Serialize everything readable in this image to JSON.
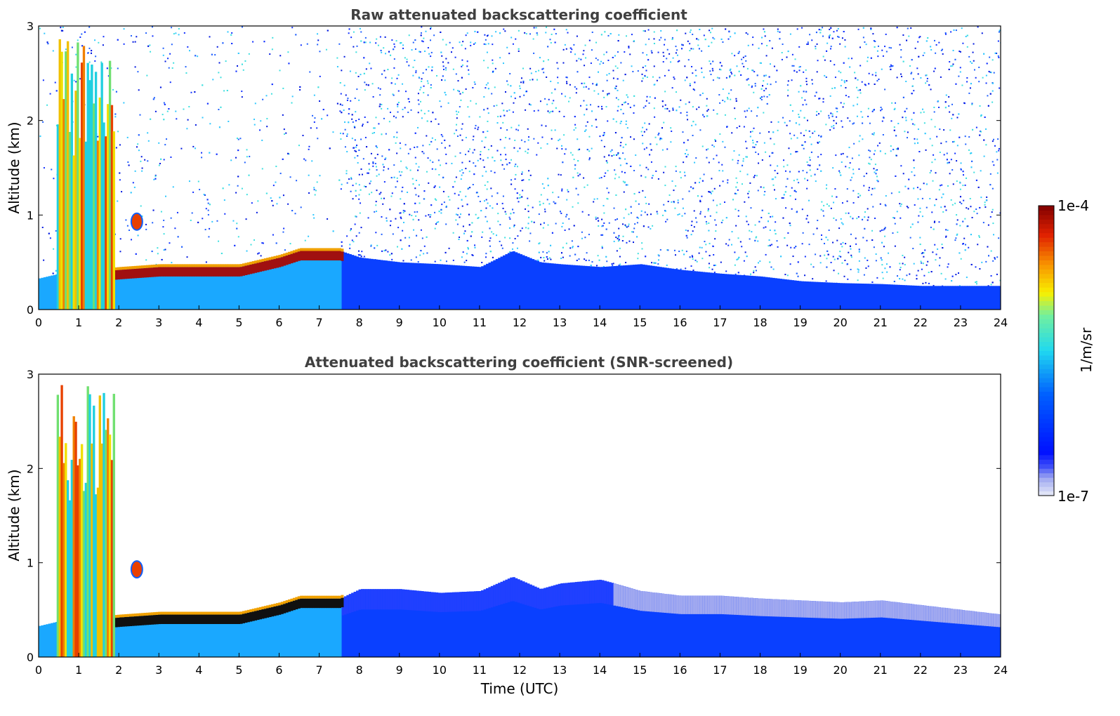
{
  "colors": {
    "colormap_low": "#e8ecf8",
    "colormap_mid_blue": "#0010ff",
    "colormap_cyan": "#20d8f0",
    "colormap_yellow": "#f8f000",
    "colormap_high": "#800000",
    "title_color": "#404040"
  },
  "chart_data": [
    {
      "type": "heatmap",
      "title": "Raw attenuated backscattering coefficient",
      "xlabel": "",
      "ylabel": "Altitude (km)",
      "xlim": [
        0,
        24
      ],
      "ylim": [
        0,
        3
      ],
      "x_ticks": [
        "0",
        "1",
        "2",
        "3",
        "4",
        "5",
        "6",
        "7",
        "8",
        "9",
        "10",
        "11",
        "12",
        "13",
        "14",
        "15",
        "16",
        "17",
        "18",
        "19",
        "20",
        "21",
        "22",
        "23",
        "24"
      ],
      "y_ticks": [
        "0",
        "1",
        "2",
        "3"
      ],
      "layer_top_km": [
        [
          0,
          0.33
        ],
        [
          0.5,
          0.38
        ],
        [
          1,
          0.38
        ],
        [
          1.5,
          0.4
        ],
        [
          2,
          0.42
        ],
        [
          3,
          0.45
        ],
        [
          4,
          0.45
        ],
        [
          5,
          0.45
        ],
        [
          6,
          0.55
        ],
        [
          6.5,
          0.62
        ],
        [
          7,
          0.62
        ],
        [
          7.5,
          0.62
        ],
        [
          8,
          0.55
        ],
        [
          9,
          0.5
        ],
        [
          10,
          0.48
        ],
        [
          11,
          0.45
        ],
        [
          11.8,
          0.62
        ],
        [
          12.5,
          0.5
        ],
        [
          13,
          0.48
        ],
        [
          14,
          0.45
        ],
        [
          15,
          0.48
        ],
        [
          16,
          0.42
        ],
        [
          17,
          0.38
        ],
        [
          18,
          0.35
        ],
        [
          19,
          0.3
        ],
        [
          20,
          0.28
        ],
        [
          21,
          0.27
        ],
        [
          22,
          0.25
        ],
        [
          23,
          0.25
        ],
        [
          24,
          0.25
        ]
      ],
      "noise": true
    },
    {
      "type": "heatmap",
      "title": "Attenuated backscattering coefficient (SNR-screened)",
      "xlabel": "Time (UTC)",
      "ylabel": "Altitude (km)",
      "xlim": [
        0,
        24
      ],
      "ylim": [
        0,
        3
      ],
      "x_ticks": [
        "0",
        "1",
        "2",
        "3",
        "4",
        "5",
        "6",
        "7",
        "8",
        "9",
        "10",
        "11",
        "12",
        "13",
        "14",
        "15",
        "16",
        "17",
        "18",
        "19",
        "20",
        "21",
        "22",
        "23",
        "24"
      ],
      "y_ticks": [
        "0",
        "1",
        "2",
        "3"
      ],
      "layer_top_km": [
        [
          0,
          0.33
        ],
        [
          0.5,
          0.38
        ],
        [
          1,
          0.38
        ],
        [
          1.5,
          0.4
        ],
        [
          2,
          0.42
        ],
        [
          3,
          0.45
        ],
        [
          4,
          0.45
        ],
        [
          5,
          0.45
        ],
        [
          6,
          0.55
        ],
        [
          6.5,
          0.62
        ],
        [
          7,
          0.62
        ],
        [
          7.5,
          0.62
        ],
        [
          8,
          0.72
        ],
        [
          9,
          0.72
        ],
        [
          10,
          0.68
        ],
        [
          11,
          0.7
        ],
        [
          11.8,
          0.85
        ],
        [
          12.5,
          0.72
        ],
        [
          13,
          0.78
        ],
        [
          14,
          0.82
        ],
        [
          15,
          0.7
        ],
        [
          16,
          0.65
        ],
        [
          17,
          0.65
        ],
        [
          18,
          0.62
        ],
        [
          19,
          0.6
        ],
        [
          20,
          0.58
        ],
        [
          21,
          0.6
        ],
        [
          22,
          0.55
        ],
        [
          23,
          0.5
        ],
        [
          24,
          0.45
        ]
      ],
      "noise": false
    }
  ],
  "colorbar": {
    "top_label": "1e-4",
    "bottom_label": "1e-7",
    "unit_label": "1/m/sr"
  }
}
